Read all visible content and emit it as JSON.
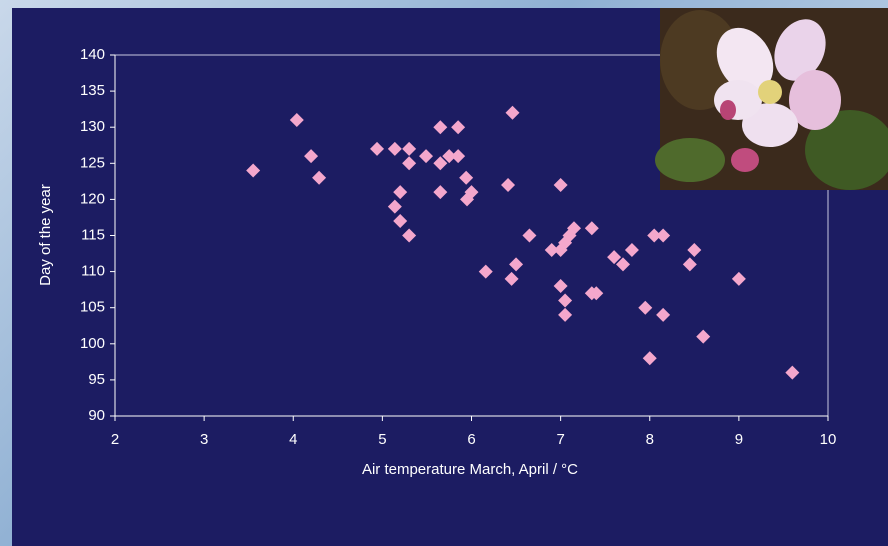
{
  "chart_data": {
    "type": "scatter",
    "x_label": "Air temperature March, April / °C",
    "y_label": "Day of the year",
    "xlim": [
      2,
      10
    ],
    "ylim": [
      90,
      140
    ],
    "xticks": [
      2,
      3,
      4,
      5,
      6,
      7,
      8,
      9,
      10
    ],
    "yticks": [
      90,
      95,
      100,
      105,
      110,
      115,
      120,
      125,
      130,
      135,
      140
    ],
    "grid": false,
    "color": "#f4a7cc",
    "x": [
      3.55,
      4.04,
      4.2,
      4.29,
      4.94,
      5.14,
      5.3,
      5.3,
      5.2,
      5.14,
      5.2,
      5.3,
      5.49,
      5.65,
      5.65,
      5.75,
      5.85,
      5.85,
      5.65,
      5.94,
      6.0,
      5.95,
      6.41,
      6.46,
      6.16,
      6.5,
      6.45,
      6.65,
      6.9,
      7.0,
      7.0,
      7.05,
      7.1,
      7.15,
      7.0,
      7.05,
      7.05,
      7.35,
      7.35,
      7.4,
      7.6,
      7.7,
      7.8,
      7.95,
      8.0,
      8.05,
      8.15,
      8.15,
      8.45,
      8.5,
      8.6,
      9.0,
      9.6
    ],
    "y": [
      124,
      131,
      126,
      123,
      127,
      127,
      127,
      125,
      121,
      119,
      117,
      115,
      126,
      130,
      125,
      126,
      126,
      130,
      121,
      123,
      121,
      120,
      122,
      132,
      110,
      111,
      109,
      115,
      113,
      122,
      113,
      114,
      115,
      116,
      108,
      106,
      104,
      116,
      107,
      107,
      112,
      111,
      113,
      105,
      98,
      115,
      115,
      104,
      111,
      113,
      101,
      109,
      96
    ]
  }
}
